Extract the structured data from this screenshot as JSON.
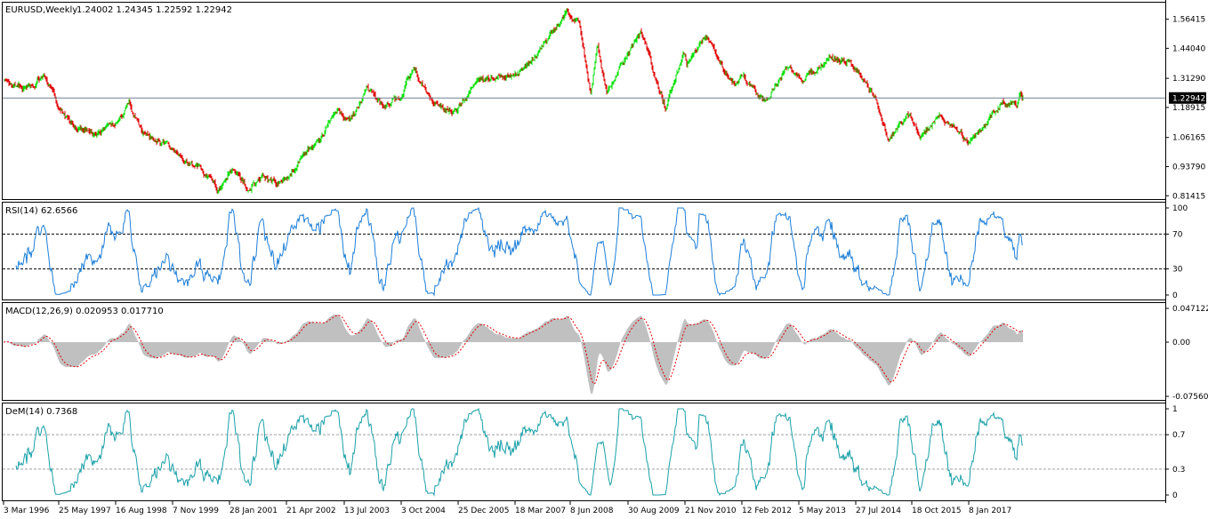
{
  "window": {
    "symbol_title": "EURUSD,Weekly",
    "ohlc": "1.24002 1.24345 1.22592 1.22942",
    "current_price_tag": "1.22942"
  },
  "colors": {
    "bull_candle": "#00e000",
    "bear_candle": "#e00000",
    "rsi_line": "#1e7fd8",
    "macd_hist": "#c0c0c0",
    "macd_signal": "#e00000",
    "dem_line": "#1aa0a8",
    "frame": "#000000",
    "level_line": "#708090"
  },
  "chart_data": [
    {
      "type": "candlestick",
      "title": "EURUSD,Weekly",
      "ylim": [
        0.8,
        1.6305
      ],
      "y_ticks": [
        "1.56415",
        "1.44040",
        "1.31290",
        "1.18915",
        "1.06165",
        "0.93790",
        "0.81415"
      ],
      "last_price": 1.22942,
      "x_ticks": [
        "3 Mar 1996",
        "25 May 1997",
        "16 Aug 1998",
        "7 Nov 1999",
        "28 Jan 2001",
        "21 Apr 2002",
        "13 Jul 2003",
        "3 Oct 2004",
        "25 Dec 2005",
        "18 Mar 2007",
        "8 Jun 2008",
        "30 Aug 2009",
        "21 Nov 2010",
        "12 Feb 2012",
        "5 May 2013",
        "27 Jul 2014",
        "18 Oct 2015",
        "8 Jan 2017"
      ],
      "price_path": [
        [
          "1996-03-03",
          1.3
        ],
        [
          "1996-09-01",
          1.27
        ],
        [
          "1997-01-15",
          1.32
        ],
        [
          "1997-05-25",
          1.18
        ],
        [
          "1997-10-01",
          1.1
        ],
        [
          "1998-03-01",
          1.08
        ],
        [
          "1998-08-16",
          1.13
        ],
        [
          "1998-11-15",
          1.2
        ],
        [
          "1999-03-01",
          1.08
        ],
        [
          "1999-07-01",
          1.05
        ],
        [
          "1999-11-07",
          1.0
        ],
        [
          "2000-03-01",
          0.95
        ],
        [
          "2000-06-01",
          0.93
        ],
        [
          "2000-10-20",
          0.84
        ],
        [
          "2001-01-28",
          0.93
        ],
        [
          "2001-06-01",
          0.85
        ],
        [
          "2001-10-01",
          0.9
        ],
        [
          "2002-02-01",
          0.87
        ],
        [
          "2002-04-21",
          0.89
        ],
        [
          "2002-08-01",
          0.98
        ],
        [
          "2003-01-01",
          1.06
        ],
        [
          "2003-05-15",
          1.18
        ],
        [
          "2003-07-13",
          1.14
        ],
        [
          "2003-10-01",
          1.17
        ],
        [
          "2004-01-01",
          1.28
        ],
        [
          "2004-05-01",
          1.19
        ],
        [
          "2004-10-03",
          1.24
        ],
        [
          "2004-12-28",
          1.36
        ],
        [
          "2005-06-01",
          1.21
        ],
        [
          "2005-11-15",
          1.17
        ],
        [
          "2005-12-25",
          1.19
        ],
        [
          "2006-05-01",
          1.29
        ],
        [
          "2006-12-01",
          1.33
        ],
        [
          "2007-03-18",
          1.33
        ],
        [
          "2007-07-15",
          1.38
        ],
        [
          "2007-11-20",
          1.48
        ],
        [
          "2008-04-20",
          1.59
        ],
        [
          "2008-06-08",
          1.56
        ],
        [
          "2008-07-15",
          1.58
        ],
        [
          "2008-10-27",
          1.25
        ],
        [
          "2008-12-18",
          1.47
        ],
        [
          "2009-03-01",
          1.25
        ],
        [
          "2009-08-30",
          1.43
        ],
        [
          "2009-11-25",
          1.51
        ],
        [
          "2010-06-07",
          1.19
        ],
        [
          "2010-11-04",
          1.42
        ],
        [
          "2010-11-21",
          1.37
        ],
        [
          "2011-05-01",
          1.49
        ],
        [
          "2011-10-04",
          1.32
        ],
        [
          "2011-12-20",
          1.29
        ],
        [
          "2012-02-12",
          1.32
        ],
        [
          "2012-07-24",
          1.21
        ],
        [
          "2013-02-01",
          1.37
        ],
        [
          "2013-05-05",
          1.31
        ],
        [
          "2013-12-27",
          1.39
        ],
        [
          "2014-05-08",
          1.39
        ],
        [
          "2014-07-27",
          1.34
        ],
        [
          "2014-12-30",
          1.21
        ],
        [
          "2015-03-16",
          1.05
        ],
        [
          "2015-08-24",
          1.16
        ],
        [
          "2015-10-18",
          1.12
        ],
        [
          "2015-12-01",
          1.06
        ],
        [
          "2016-05-03",
          1.16
        ],
        [
          "2016-12-20",
          1.04
        ],
        [
          "2017-01-08",
          1.05
        ],
        [
          "2017-09-08",
          1.21
        ],
        [
          "2017-12-31",
          1.2
        ],
        [
          "2018-01-28",
          1.25
        ],
        [
          "2018-02-18",
          1.22942
        ]
      ]
    },
    {
      "type": "line",
      "title": "RSI(14) 62.6566",
      "ylim": [
        0,
        100
      ],
      "y_ticks": [
        "100",
        "70",
        "30",
        "0"
      ],
      "levels": [
        70,
        30
      ],
      "last_value": 62.6566
    },
    {
      "type": "bar",
      "title": "MACD(12,26,9) 0.020953 0.017710",
      "ylim": [
        -0.075608,
        0.047122
      ],
      "y_ticks": [
        "0.047122",
        "0.00",
        "-0.075608"
      ],
      "last_main": 0.020953,
      "last_signal": 0.01771
    },
    {
      "type": "line",
      "title": "DeM(14) 0.7368",
      "ylim": [
        0,
        1
      ],
      "y_ticks": [
        "1",
        "0.7",
        "0.3",
        "0"
      ],
      "levels": [
        0.7,
        0.3
      ],
      "last_value": 0.7368
    }
  ]
}
